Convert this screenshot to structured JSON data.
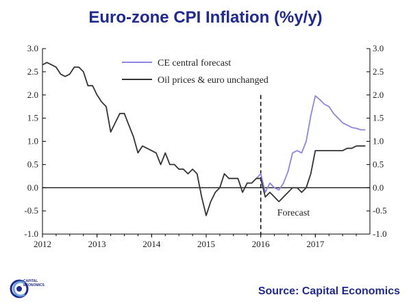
{
  "title": "Euro-zone CPI Inflation (%y/y)",
  "source": "Source: Capital Economics",
  "logo_text": [
    "CAPITAL",
    "ECONOMICS"
  ],
  "colors": {
    "title": "#1f2a8c",
    "forecast": "#8b86e0",
    "baseline": "#333333"
  },
  "chart_data": {
    "type": "line",
    "title": "Euro-zone CPI Inflation (%y/y)",
    "ylim": [
      -1.0,
      3.0
    ],
    "yticks": [
      "3.0",
      "2.5",
      "2.0",
      "1.5",
      "1.0",
      "0.5",
      "0.0",
      "-0.5",
      "-1.0"
    ],
    "ytick_values": [
      3.0,
      2.5,
      2.0,
      1.5,
      1.0,
      0.5,
      0.0,
      -0.5,
      -1.0
    ],
    "xlim": [
      2012,
      2018
    ],
    "xticks": [
      "2012",
      "2013",
      "2014",
      "2015",
      "2016",
      "2017"
    ],
    "xtick_values": [
      2012,
      2013,
      2014,
      2015,
      2016,
      2017
    ],
    "grid": false,
    "legend_position": "top-left",
    "annotations": [
      {
        "text": "Forecast",
        "x": 2016.0,
        "style": "dashed-vertical-line"
      }
    ],
    "series": [
      {
        "name": "CE central forecast",
        "color": "#8b86e0",
        "x": [
          2015.917,
          2016.0,
          2016.083,
          2016.167,
          2016.25,
          2016.333,
          2016.417,
          2016.5,
          2016.583,
          2016.667,
          2016.75,
          2016.833,
          2016.917,
          2017.0,
          2017.083,
          2017.167,
          2017.25,
          2017.333,
          2017.417,
          2017.5,
          2017.583,
          2017.667,
          2017.75,
          2017.833,
          2017.917
        ],
        "values": [
          0.2,
          0.3,
          -0.1,
          0.1,
          0.0,
          -0.05,
          0.1,
          0.35,
          0.75,
          0.8,
          0.75,
          1.0,
          1.55,
          1.98,
          1.9,
          1.8,
          1.75,
          1.6,
          1.5,
          1.4,
          1.35,
          1.3,
          1.28,
          1.25,
          1.25
        ]
      },
      {
        "name": "Oil prices & euro unchanged",
        "color": "#333333",
        "x": [
          2012.0,
          2012.083,
          2012.167,
          2012.25,
          2012.333,
          2012.417,
          2012.5,
          2012.583,
          2012.667,
          2012.75,
          2012.833,
          2012.917,
          2013.0,
          2013.083,
          2013.167,
          2013.25,
          2013.333,
          2013.417,
          2013.5,
          2013.583,
          2013.667,
          2013.75,
          2013.833,
          2013.917,
          2014.0,
          2014.083,
          2014.167,
          2014.25,
          2014.333,
          2014.417,
          2014.5,
          2014.583,
          2014.667,
          2014.75,
          2014.833,
          2014.917,
          2015.0,
          2015.083,
          2015.167,
          2015.25,
          2015.333,
          2015.417,
          2015.5,
          2015.583,
          2015.667,
          2015.75,
          2015.833,
          2015.917,
          2016.0,
          2016.083,
          2016.167,
          2016.25,
          2016.333,
          2016.417,
          2016.5,
          2016.583,
          2016.667,
          2016.75,
          2016.833,
          2016.917,
          2017.0,
          2017.083,
          2017.167,
          2017.25,
          2017.333,
          2017.417,
          2017.5,
          2017.583,
          2017.667,
          2017.75,
          2017.833,
          2017.917
        ],
        "values": [
          2.65,
          2.7,
          2.65,
          2.6,
          2.45,
          2.4,
          2.45,
          2.6,
          2.6,
          2.5,
          2.2,
          2.2,
          2.0,
          1.85,
          1.75,
          1.2,
          1.4,
          1.6,
          1.6,
          1.35,
          1.1,
          0.75,
          0.9,
          0.85,
          0.8,
          0.75,
          0.5,
          0.75,
          0.5,
          0.5,
          0.4,
          0.4,
          0.3,
          0.4,
          0.3,
          -0.2,
          -0.6,
          -0.3,
          -0.1,
          0.0,
          0.3,
          0.2,
          0.2,
          0.2,
          -0.1,
          0.1,
          0.1,
          0.2,
          0.2,
          -0.2,
          -0.1,
          -0.2,
          -0.3,
          -0.2,
          -0.1,
          0.0,
          0.0,
          -0.1,
          0.0,
          0.3,
          0.8,
          0.8,
          0.8,
          0.8,
          0.8,
          0.8,
          0.8,
          0.85,
          0.85,
          0.9,
          0.9,
          0.9
        ]
      }
    ]
  }
}
